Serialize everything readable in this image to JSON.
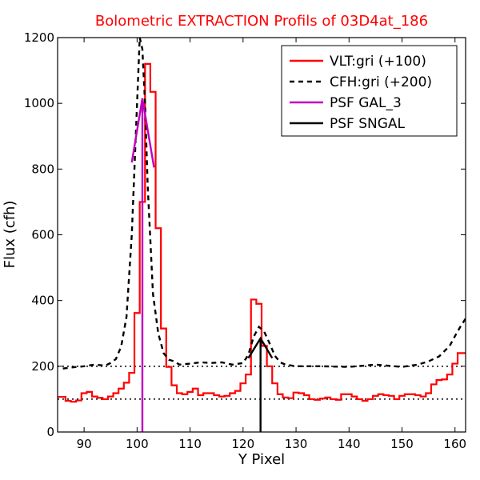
{
  "chart_data": {
    "type": "line",
    "title": "Bolometric EXTRACTION Profils of 03D4at_186",
    "title_color": "#ff0000",
    "xlabel": "Y Pixel",
    "ylabel": "Flux (cfh)",
    "xlim": [
      85,
      162
    ],
    "ylim": [
      0,
      1200
    ],
    "xticks": [
      90,
      100,
      110,
      120,
      130,
      140,
      150,
      160
    ],
    "yticks": [
      0,
      200,
      400,
      600,
      800,
      1000,
      1200
    ],
    "xtick_labels": [
      "90",
      "100",
      "110",
      "120",
      "130",
      "140",
      "150",
      "160"
    ],
    "ytick_labels": [
      "0",
      "200",
      "400",
      "600",
      "800",
      "1000",
      "1200"
    ],
    "grid": false,
    "legend_position": "top-right",
    "series": [
      {
        "name": "VLT:gri (+100)",
        "color": "#ff0000",
        "style": "steps",
        "x": [
          85,
          86,
          87,
          88,
          89,
          90,
          91,
          92,
          93,
          94,
          95,
          96,
          97,
          98,
          99,
          100,
          101,
          102,
          103,
          104,
          105,
          106,
          107,
          108,
          109,
          110,
          111,
          112,
          113,
          114,
          115,
          116,
          117,
          118,
          119,
          120,
          121,
          122,
          123,
          124,
          125,
          126,
          127,
          128,
          129,
          130,
          131,
          132,
          133,
          134,
          135,
          136,
          137,
          138,
          139,
          140,
          141,
          142,
          143,
          144,
          145,
          146,
          147,
          148,
          149,
          150,
          151,
          152,
          153,
          154,
          155,
          156,
          157,
          158,
          159,
          160,
          161,
          162
        ],
        "y": [
          107,
          107,
          95,
          92,
          96,
          118,
          122,
          108,
          104,
          100,
          108,
          118,
          132,
          150,
          180,
          362,
          700,
          1120,
          1035,
          620,
          315,
          198,
          142,
          118,
          115,
          122,
          132,
          112,
          118,
          118,
          112,
          108,
          110,
          118,
          125,
          148,
          175,
          403,
          390,
          262,
          200,
          148,
          115,
          105,
          103,
          120,
          118,
          112,
          100,
          98,
          102,
          105,
          100,
          98,
          115,
          115,
          108,
          100,
          95,
          100,
          110,
          115,
          112,
          110,
          100,
          110,
          115,
          115,
          112,
          108,
          118,
          145,
          158,
          160,
          175,
          208,
          240,
          240
        ]
      },
      {
        "name": "CFH:gri (+200)",
        "color": "#000000",
        "style": "dashed",
        "x": [
          86,
          88,
          90,
          92,
          94,
          95,
          96,
          97,
          98,
          99,
          100,
          100.5,
          101,
          101.5,
          102,
          103,
          104,
          105,
          106,
          107,
          108,
          110,
          112,
          114,
          116,
          118,
          120,
          121,
          122,
          123,
          124,
          125,
          126,
          127,
          128,
          130,
          135,
          140,
          145,
          150,
          153,
          155,
          157,
          159,
          160,
          161,
          162
        ],
        "y": [
          193,
          197,
          200,
          205,
          202,
          210,
          222,
          260,
          350,
          600,
          1000,
          1200,
          1165,
          1000,
          750,
          420,
          300,
          240,
          220,
          215,
          205,
          208,
          212,
          210,
          212,
          205,
          210,
          235,
          290,
          320,
          305,
          270,
          232,
          212,
          205,
          200,
          200,
          198,
          205,
          198,
          205,
          215,
          230,
          262,
          292,
          320,
          345
        ]
      },
      {
        "name": "PSF GAL_3",
        "color": "#bf00bf",
        "style": "line",
        "x": [
          99,
          101,
          103.2
        ],
        "y": [
          820,
          1015,
          805
        ]
      },
      {
        "name": "PSF SNGAL",
        "color": "#000000",
        "style": "line",
        "x": [
          121,
          123.3,
          125.5
        ],
        "y": [
          225,
          285,
          225
        ]
      }
    ],
    "vlines": [
      {
        "series": "PSF GAL_3",
        "x": 101,
        "y_from": 0,
        "y_to": 1015,
        "color": "#bf00bf"
      },
      {
        "series": "PSF SNGAL",
        "x": 123.3,
        "y_from": 0,
        "y_to": 285,
        "color": "#000000"
      }
    ],
    "hlines": [
      {
        "y": 200,
        "color": "#000000",
        "style": "dotted"
      },
      {
        "y": 100,
        "color": "#000000",
        "style": "dotted"
      }
    ]
  }
}
